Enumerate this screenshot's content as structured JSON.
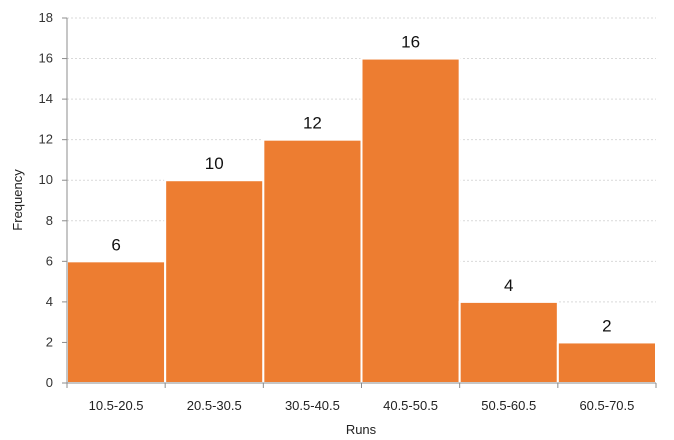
{
  "chart_data": {
    "type": "bar",
    "title": "",
    "xlabel": "Runs",
    "ylabel": "Frequency",
    "categories": [
      "10.5-20.5",
      "20.5-30.5",
      "30.5-40.5",
      "40.5-50.5",
      "50.5-60.5",
      "60.5-70.5"
    ],
    "values": [
      6,
      10,
      12,
      16,
      4,
      2
    ],
    "ylim": [
      0,
      18
    ],
    "yticks": [
      0,
      2,
      4,
      6,
      8,
      10,
      12,
      14,
      16,
      18
    ],
    "grid": true,
    "legend": "none",
    "bar_color": "#ED7D31",
    "gap": "none"
  }
}
